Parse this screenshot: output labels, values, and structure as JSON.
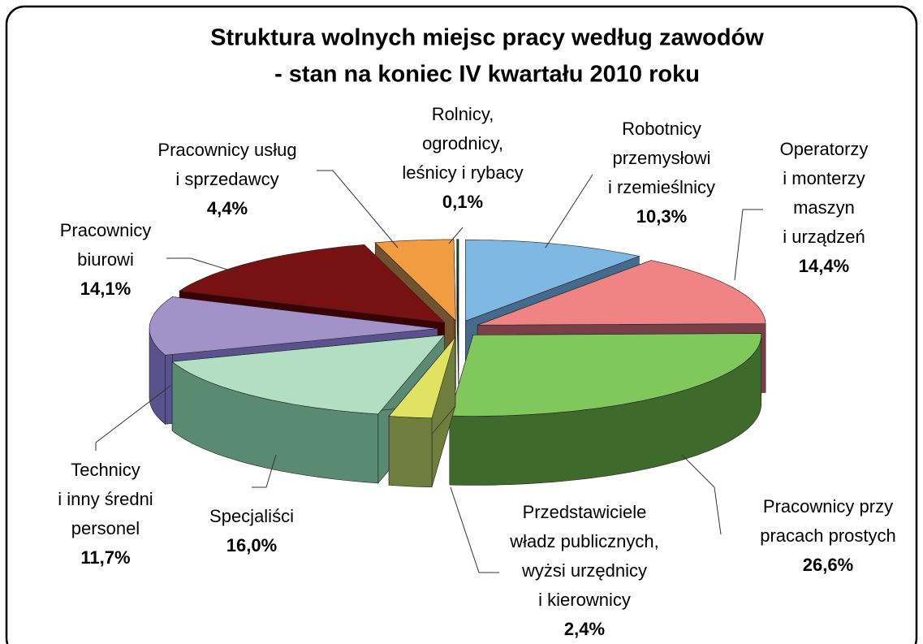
{
  "chart_data": {
    "type": "pie3d",
    "title": [
      "Struktura wolnych miejsc pracy według zawodów",
      "- stan na koniec IV kwartału 2010 roku"
    ],
    "categories": [
      [
        "Robotnicy",
        "przemysłowi",
        "i rzemieślnicy"
      ],
      [
        "Operatorzy",
        "i monterzy",
        "maszyn",
        "i urządzeń"
      ],
      [
        "Pracownicy przy",
        "pracach prostych"
      ],
      [
        "Przedstawiciele",
        "władz publicznych,",
        "wyżsi urzędnicy",
        "i kierownicy"
      ],
      [
        "Specjaliści"
      ],
      [
        "Technicy",
        "i inny średni",
        "personel"
      ],
      [
        "Pracownicy",
        "biurowi"
      ],
      [
        "Pracownicy usług",
        "i sprzedawcy"
      ],
      [
        "Rolnicy,",
        "ogrodnicy,",
        "leśnicy i rybacy"
      ]
    ],
    "values": [
      10.3,
      14.4,
      26.6,
      2.4,
      16.0,
      11.7,
      14.1,
      4.4,
      0.1
    ],
    "value_labels": [
      "10,3%",
      "14,4%",
      "26,6%",
      "2,4%",
      "16,0%",
      "11,7%",
      "14,1%",
      "4,4%",
      "0,1%"
    ],
    "colors": [
      "#7fb8e2",
      "#f08484",
      "#80c85c",
      "#e2e262",
      "#b2dec2",
      "#a392c9",
      "#781212",
      "#f29c42",
      "#0b5a2c"
    ],
    "side_colors": [
      "#456a8c",
      "#7a4048",
      "#3e6a2c",
      "#6f7e3c",
      "#5a8a72",
      "#5a528c",
      "#3a0202",
      "#72522e",
      "#053018"
    ]
  }
}
